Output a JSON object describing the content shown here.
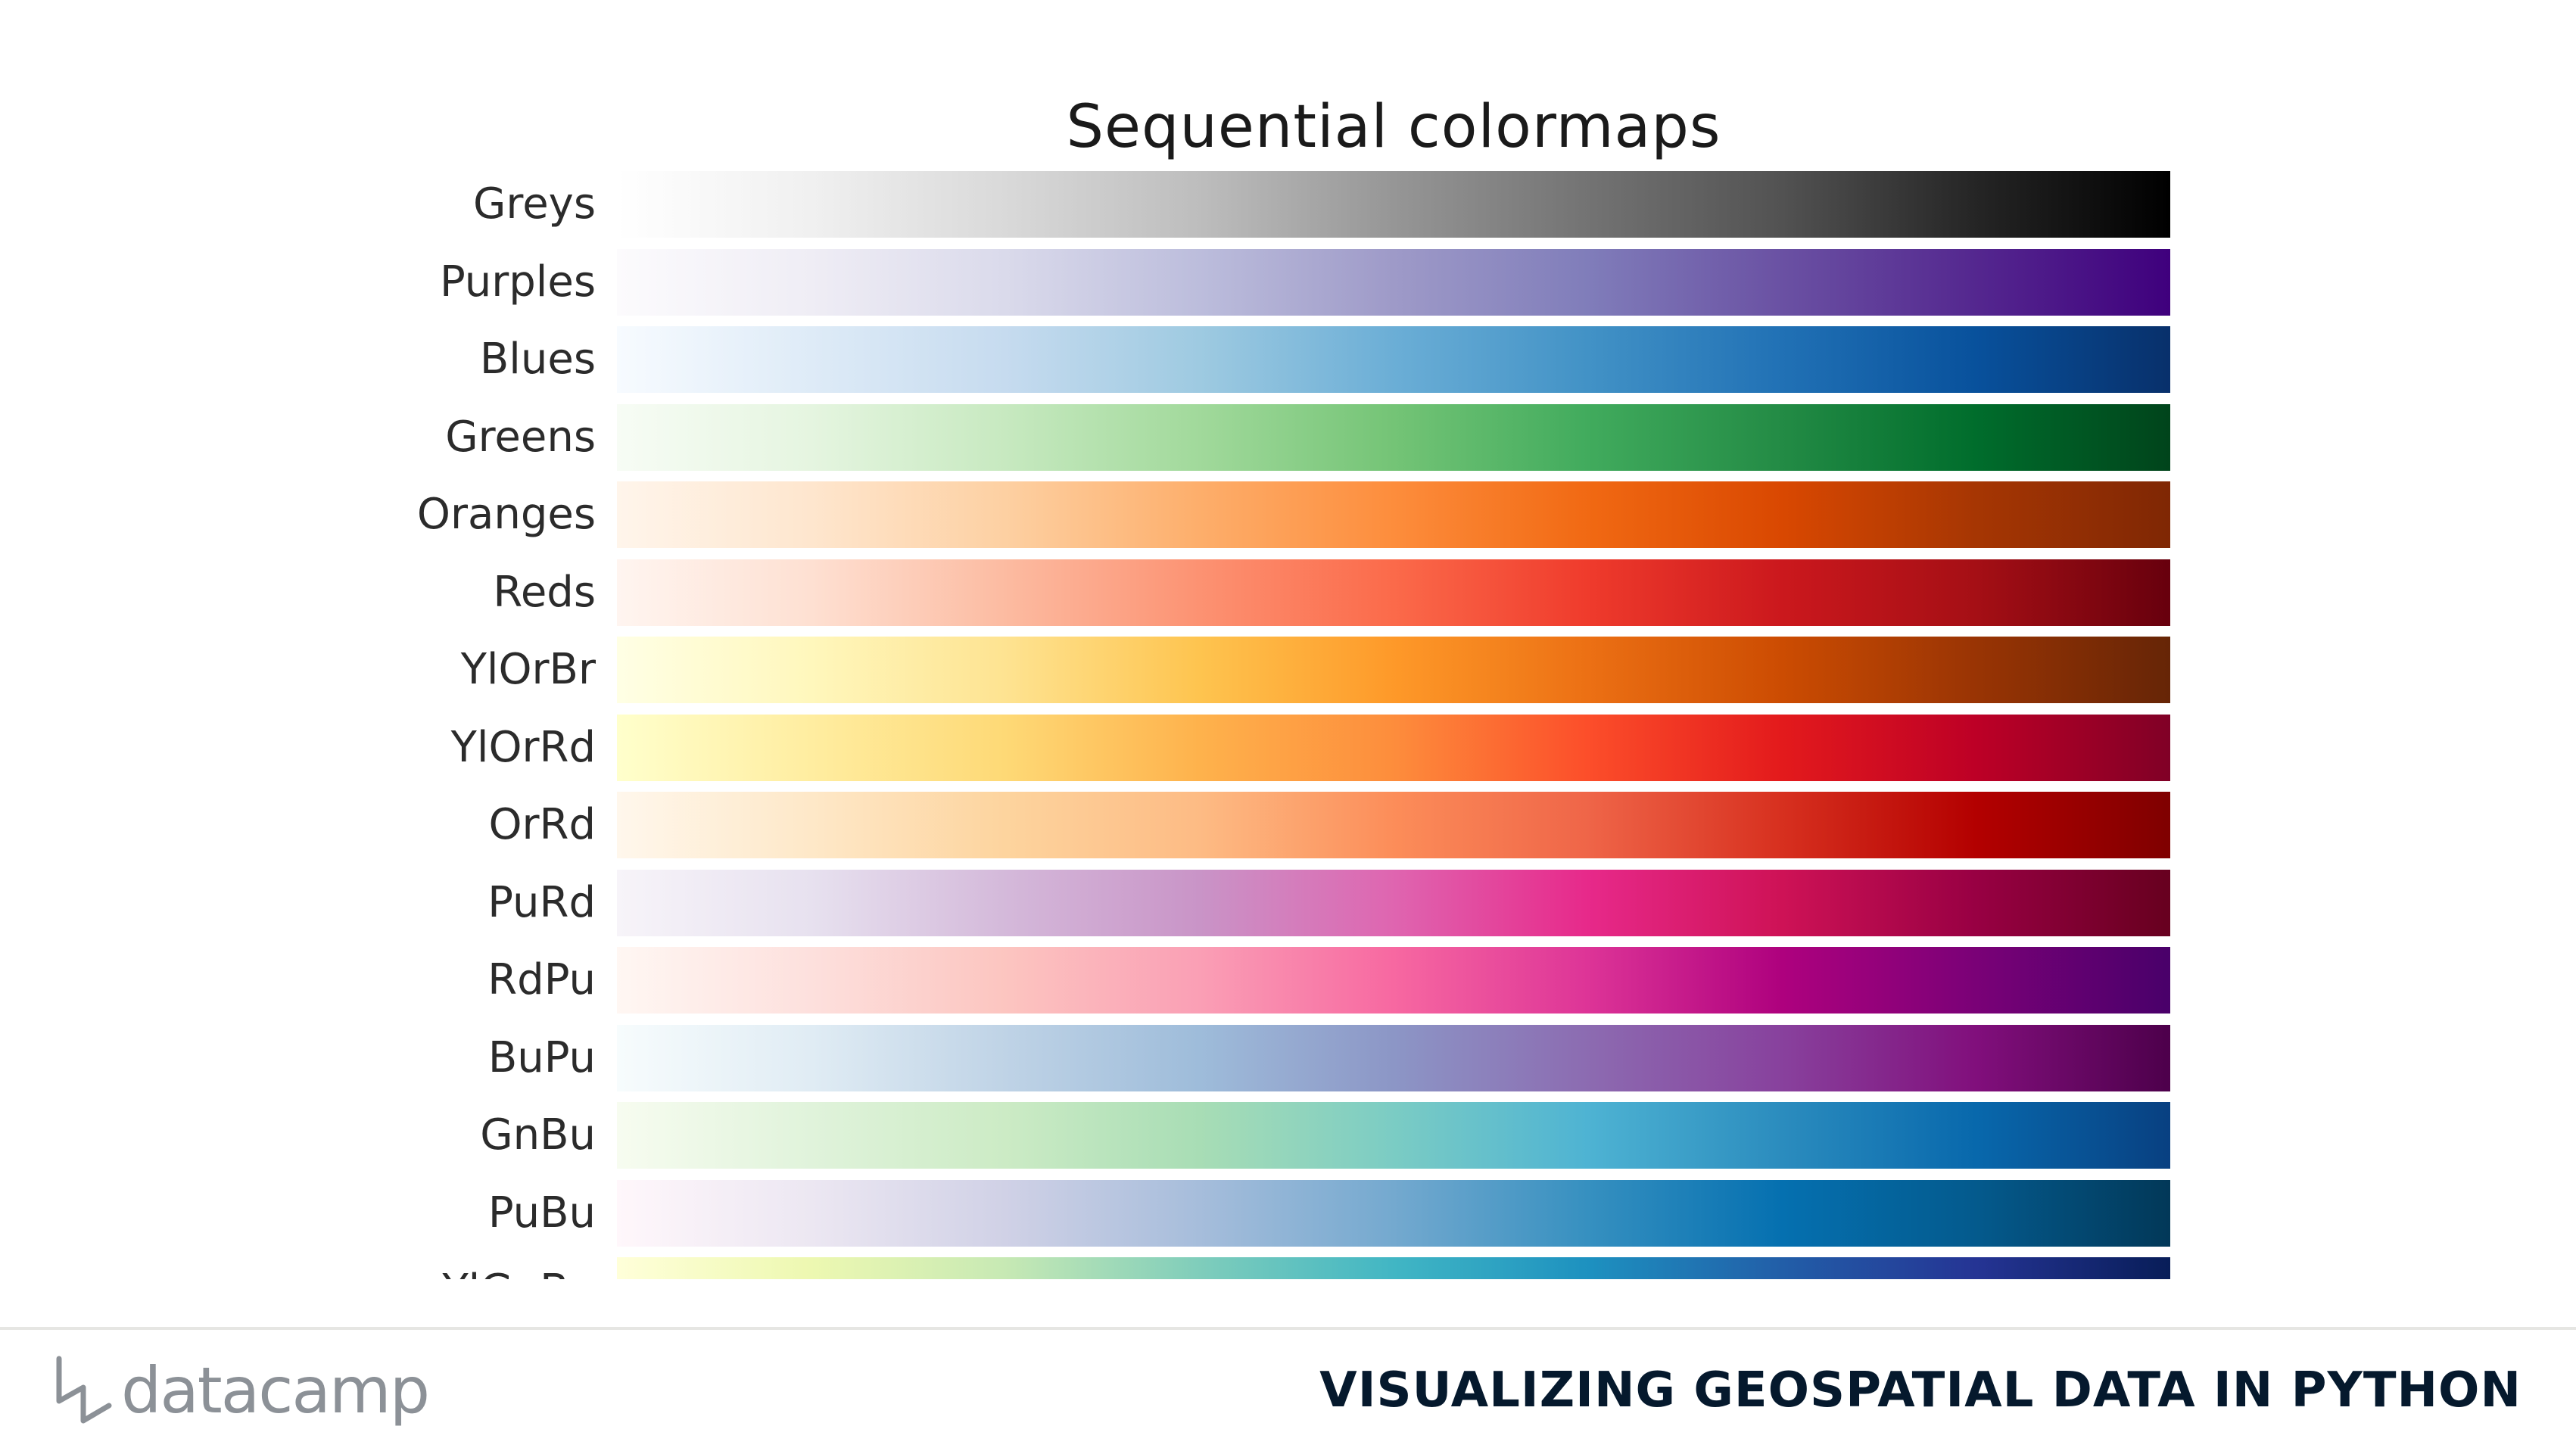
{
  "figure": {
    "title": "Sequential colormaps",
    "colormaps": [
      {
        "label": "Greys",
        "stops": [
          "#ffffff",
          "#f0f0f0",
          "#d9d9d9",
          "#bdbdbd",
          "#969696",
          "#737373",
          "#525252",
          "#252525",
          "#000000"
        ]
      },
      {
        "label": "Purples",
        "stops": [
          "#fcfbfd",
          "#efedf5",
          "#dadaeb",
          "#bcbddc",
          "#9e9ac8",
          "#807dba",
          "#6a51a3",
          "#54278f",
          "#3f007d"
        ]
      },
      {
        "label": "Blues",
        "stops": [
          "#f7fbff",
          "#deebf7",
          "#c6dbef",
          "#9ecae1",
          "#6baed6",
          "#4292c6",
          "#2171b5",
          "#08519c",
          "#08306b"
        ]
      },
      {
        "label": "Greens",
        "stops": [
          "#f7fcf5",
          "#e5f5e0",
          "#c7e9c0",
          "#a1d99b",
          "#74c476",
          "#41ab5d",
          "#238b45",
          "#006d2c",
          "#00441b"
        ]
      },
      {
        "label": "Oranges",
        "stops": [
          "#fff5eb",
          "#fee6ce",
          "#fdd0a2",
          "#fdae6b",
          "#fd8d3c",
          "#f16913",
          "#d94801",
          "#a63603",
          "#7f2704"
        ]
      },
      {
        "label": "Reds",
        "stops": [
          "#fff5f0",
          "#fee0d2",
          "#fcbba1",
          "#fc9272",
          "#fb6a4a",
          "#ef3b2c",
          "#cb181d",
          "#a50f15",
          "#67000d"
        ]
      },
      {
        "label": "YlOrBr",
        "stops": [
          "#ffffe5",
          "#fff7bc",
          "#fee391",
          "#fec44f",
          "#fe9929",
          "#ec7014",
          "#cc4c02",
          "#993404",
          "#662506"
        ]
      },
      {
        "label": "YlOrRd",
        "stops": [
          "#ffffcc",
          "#ffeda0",
          "#fed976",
          "#feb24c",
          "#fd8d3c",
          "#fc4e2a",
          "#e31a1c",
          "#bd0026",
          "#800026"
        ]
      },
      {
        "label": "OrRd",
        "stops": [
          "#fff7ec",
          "#fee8c8",
          "#fdd49e",
          "#fdbb84",
          "#fc8d59",
          "#ef6548",
          "#d7301f",
          "#b30000",
          "#7f0000"
        ]
      },
      {
        "label": "PuRd",
        "stops": [
          "#f7f4f9",
          "#e7e1ef",
          "#d4b9da",
          "#c994c7",
          "#df65b0",
          "#e7298a",
          "#ce1256",
          "#980043",
          "#67001f"
        ]
      },
      {
        "label": "RdPu",
        "stops": [
          "#fff7f3",
          "#fde0dd",
          "#fcc5c0",
          "#fa9fb5",
          "#f768a1",
          "#dd3497",
          "#ae017e",
          "#7a0177",
          "#49006a"
        ]
      },
      {
        "label": "BuPu",
        "stops": [
          "#f7fcfd",
          "#e0ecf4",
          "#bfd3e6",
          "#9ebcda",
          "#8c96c6",
          "#8c6bb1",
          "#88419d",
          "#810f7c",
          "#4d004b"
        ]
      },
      {
        "label": "GnBu",
        "stops": [
          "#f7fcf0",
          "#e0f3db",
          "#ccebc5",
          "#a8ddb5",
          "#7bccc4",
          "#4eb3d3",
          "#2b8cbe",
          "#0868ac",
          "#084081"
        ]
      },
      {
        "label": "PuBu",
        "stops": [
          "#fff7fb",
          "#ece7f2",
          "#d0d1e6",
          "#a6bddb",
          "#74a9cf",
          "#3690c0",
          "#0570b0",
          "#045a8d",
          "#023858"
        ]
      },
      {
        "label": "YlGnBu",
        "stops": [
          "#ffffd9",
          "#edf8b1",
          "#c7e9b4",
          "#7fcdbb",
          "#41b6c4",
          "#1d91c0",
          "#225ea8",
          "#253494",
          "#081d58"
        ]
      }
    ]
  },
  "footer": {
    "logo_text": "datacamp",
    "course_title": "VISUALIZING GEOSPATIAL DATA IN PYTHON"
  },
  "colors": {
    "footer_title": "#05192d",
    "logo": "#8c9197",
    "divider": "#e6e6e3"
  }
}
